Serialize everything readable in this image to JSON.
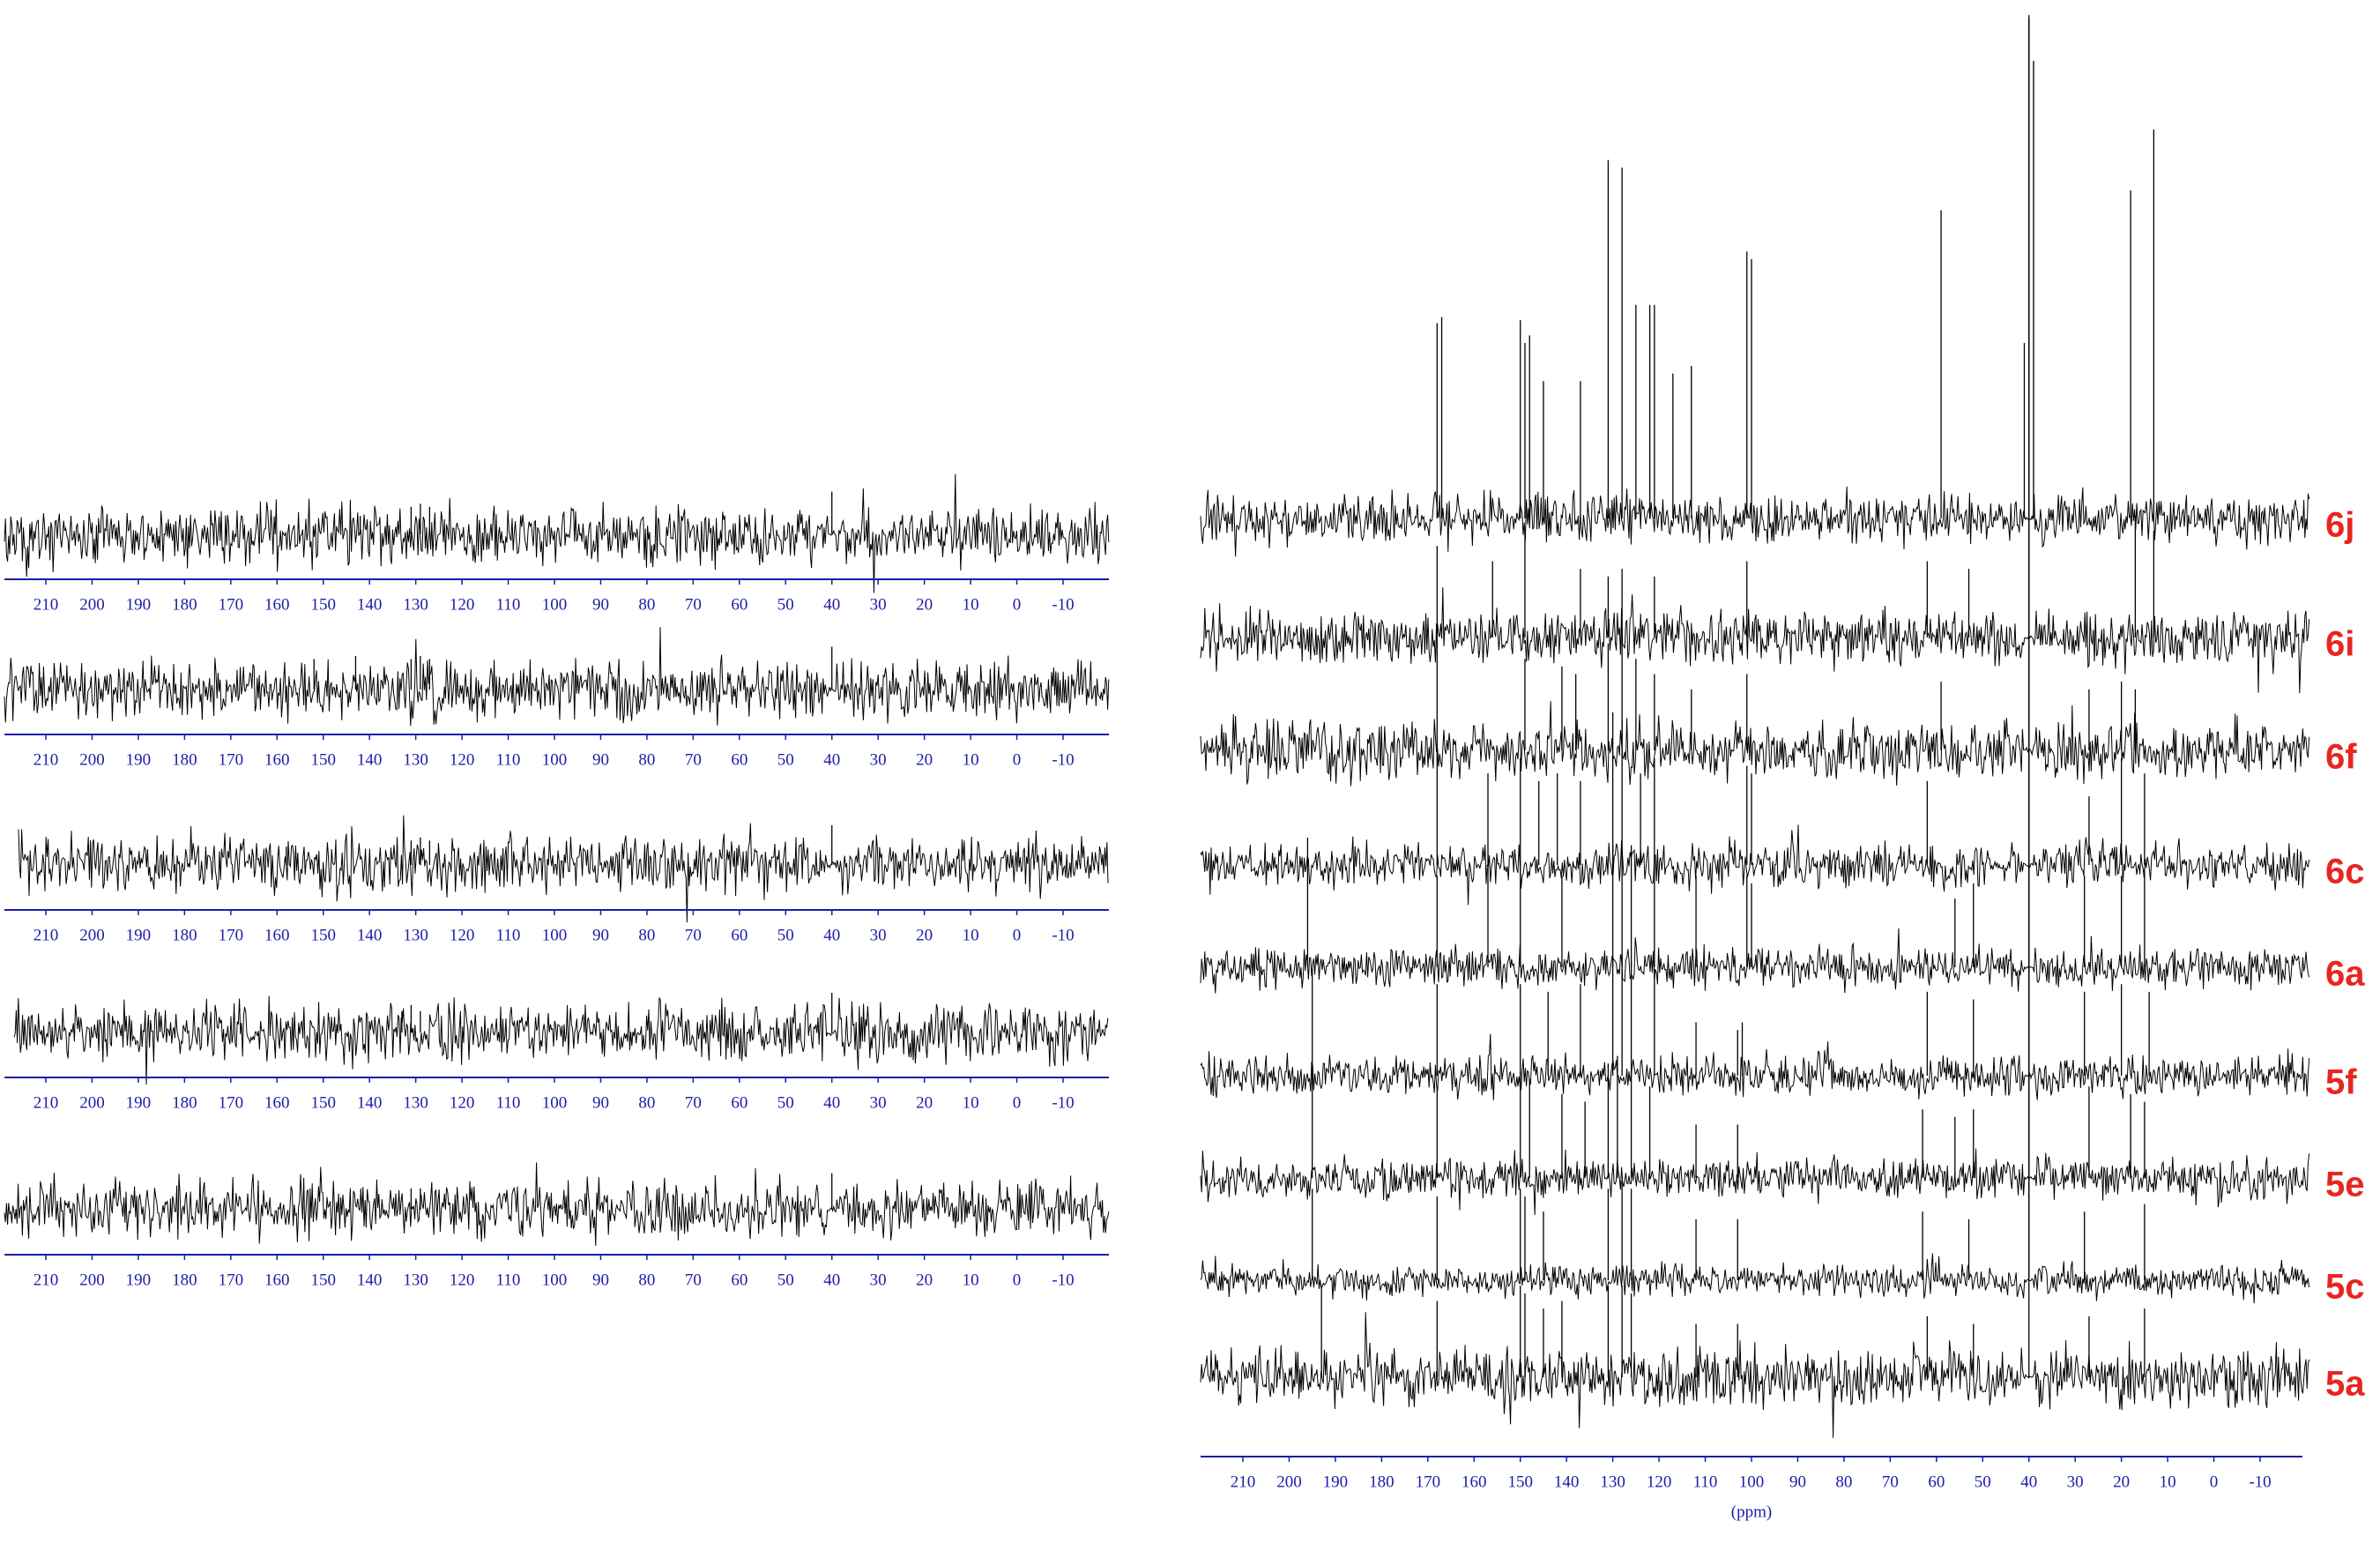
{
  "chart_data": [
    {
      "type": "nmr-panel",
      "color": "#000000",
      "axis_color": "#1c1ca8",
      "xlim": [
        219,
        -19
      ],
      "xticks": [
        210,
        200,
        190,
        180,
        170,
        160,
        150,
        140,
        130,
        120,
        110,
        100,
        90,
        80,
        70,
        60,
        50,
        40,
        30,
        20,
        10,
        0,
        -10
      ],
      "spectra": [
        {
          "peaks": {
            "x": [
              40,
              131,
              129,
              127,
              142
            ],
            "values": [
              28,
              18,
              20,
              18,
              12
            ]
          }
        },
        {
          "peaks": {
            "x": [
              40,
              152,
              143,
              131,
              129,
              127
            ],
            "values": [
              28,
              20,
              22,
              20,
              22,
              20
            ]
          }
        },
        {
          "peaks": {
            "x": [
              40,
              131,
              129,
              127,
              158
            ],
            "values": [
              26,
              16,
              18,
              16,
              12
            ]
          }
        },
        {
          "peaks": {
            "x": [
              40,
              133,
              131,
              129
            ],
            "values": [
              26,
              14,
              18,
              14
            ]
          }
        },
        {
          "peaks": {
            "x": [
              40,
              131,
              129
            ],
            "values": [
              24,
              14,
              14
            ]
          }
        }
      ]
    },
    {
      "type": "nmr-stack",
      "color": "#000000",
      "axis_color": "#1c1ca8",
      "label_color": "#e8251f",
      "xlabel": "(ppm)",
      "xlim": [
        219,
        -21
      ],
      "xticks": [
        210,
        200,
        190,
        180,
        170,
        160,
        150,
        140,
        130,
        120,
        110,
        100,
        90,
        80,
        70,
        60,
        50,
        40,
        30,
        20,
        10,
        0,
        -10
      ],
      "spectra": [
        {
          "name": "6j",
          "peaks": {
            "x": [
              168,
              167,
              150,
              149,
              148,
              145,
              137,
              131,
              128,
              125,
              122,
              121,
              117,
              113,
              101,
              100,
              59,
              41,
              40,
              39,
              18,
              13
            ],
            "values": [
              128,
              132,
              130,
              115,
              120,
              90,
              90,
              235,
              230,
              140,
              140,
              140,
              95,
              100,
              175,
              170,
              202,
              115,
              330,
              300,
              215,
              255
            ]
          }
        },
        {
          "name": "6i",
          "peaks": {
            "x": [
              168,
              156,
              149,
              137,
              131,
              128,
              121,
              101,
              62,
              53,
              40,
              17,
              13
            ],
            "values": [
              60,
              50,
              70,
              45,
              40,
              45,
              40,
              50,
              50,
              45,
              405,
              80,
              70
            ]
          }
        },
        {
          "name": "6f",
          "peaks": {
            "x": [
              168,
              149,
              141,
              138,
              131,
              128,
              125,
              121,
              113,
              101,
              59,
              40,
              27,
              20,
              17
            ],
            "values": [
              75,
              60,
              55,
              50,
              70,
              80,
              60,
              50,
              40,
              50,
              45,
              480,
              40,
              45,
              40
            ]
          }
        },
        {
          "name": "6c",
          "peaks": {
            "x": [
              168,
              157,
              150,
              146,
              142,
              137,
              130,
              128,
              124,
              121,
              101,
              100,
              62,
              40,
              27,
              20,
              15
            ],
            "values": [
              75,
              60,
              70,
              55,
              60,
              55,
              100,
              95,
              60,
              70,
              65,
              60,
              55,
              555,
              45,
              70,
              60
            ]
          }
        },
        {
          "name": "6a",
          "peaks": {
            "x": [
              196,
              168,
              157,
              150,
              141,
              130,
              128,
              126,
              121,
              112,
              101,
              100,
              56,
              52,
              40,
              28,
              20,
              15
            ],
            "values": [
              85,
              60,
              65,
              70,
              60,
              80,
              75,
              80,
              70,
              60,
              60,
              55,
              45,
              55,
              620,
              60,
              60,
              65
            ]
          }
        },
        {
          "name": "5f",
          "peaks": {
            "x": [
              195,
              168,
              150,
              144,
              137,
              130,
              128,
              126,
              121,
              112,
              103,
              102,
              62,
              52,
              40,
              28,
              20,
              14
            ],
            "values": [
              70,
              60,
              60,
              55,
              60,
              75,
              80,
              75,
              70,
              35,
              30,
              35,
              55,
              50,
              690,
              55,
              60,
              55
            ]
          }
        },
        {
          "name": "5e",
          "peaks": {
            "x": [
              195,
              168,
              150,
              148,
              141,
              136,
              131,
              129,
              126,
              122,
              112,
              103,
              63,
              56,
              52,
              40,
              27,
              18,
              15
            ],
            "values": [
              75,
              60,
              70,
              65,
              55,
              50,
              75,
              80,
              70,
              60,
              35,
              35,
              45,
              40,
              45,
              760,
              60,
              55,
              50
            ]
          }
        },
        {
          "name": "5c",
          "peaks": {
            "x": [
              195,
              168,
              150,
              149,
              145,
              131,
              128,
              126,
              112,
              103,
              63,
              53,
              40,
              28,
              15
            ],
            "values": [
              60,
              55,
              60,
              55,
              45,
              60,
              65,
              60,
              40,
              40,
              45,
              40,
              825,
              45,
              50
            ]
          }
        },
        {
          "name": "5a",
          "peaks": {
            "x": [
              193,
              168,
              150,
              149,
              145,
              141,
              131,
              128,
              126,
              112,
              103,
              62,
              52,
              40,
              27,
              15
            ],
            "values": [
              60,
              50,
              60,
              55,
              45,
              50,
              60,
              60,
              55,
              35,
              35,
              40,
              35,
              890,
              40,
              45
            ]
          }
        }
      ]
    }
  ]
}
